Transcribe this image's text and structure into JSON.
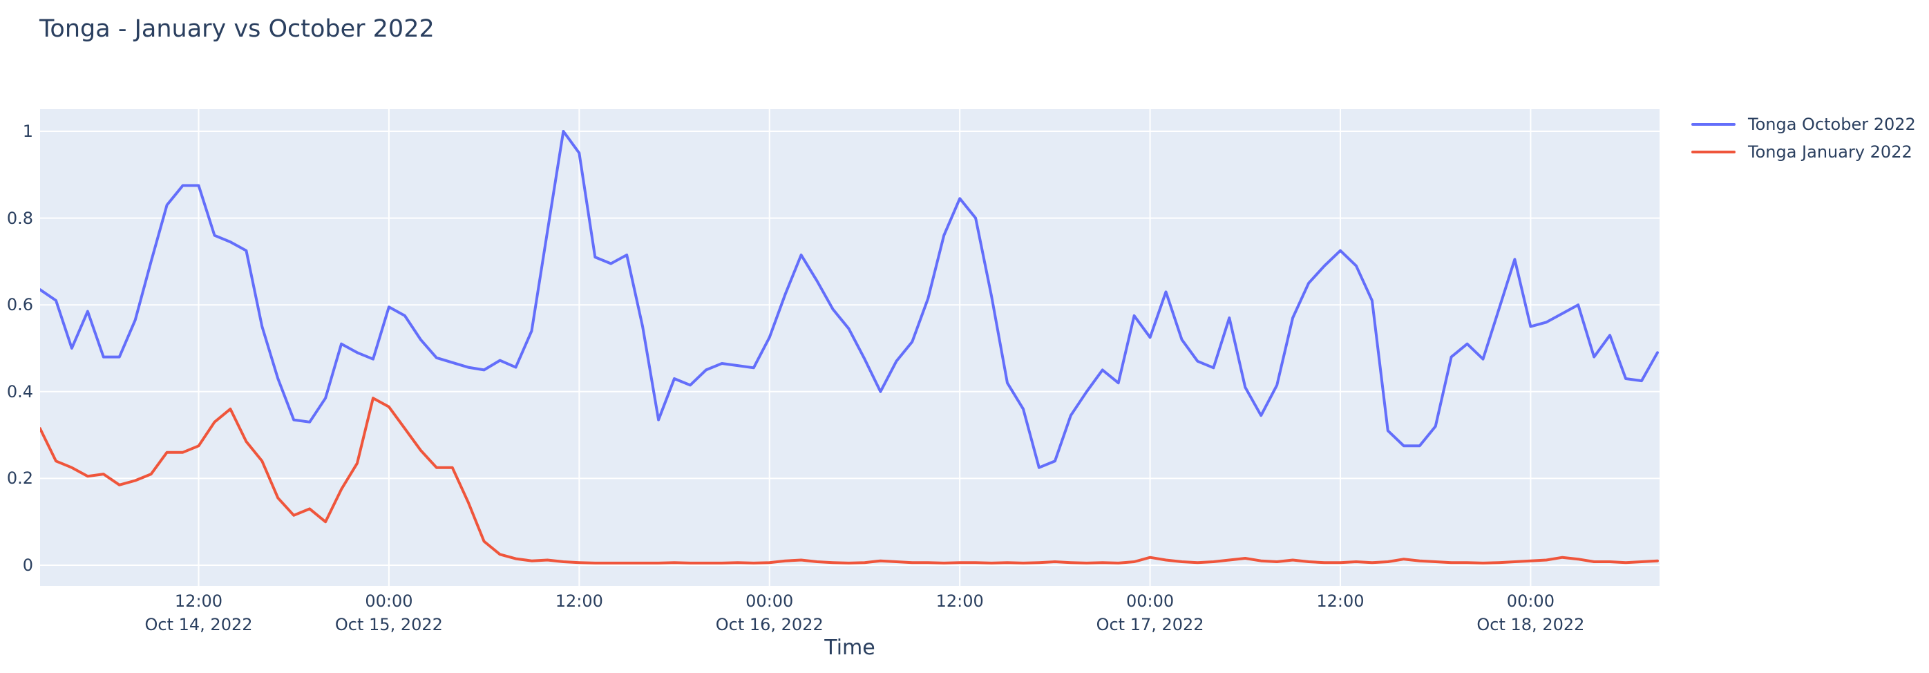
{
  "title": "Tonga - January vs October 2022",
  "colors": {
    "text": "#2a3f5f",
    "plot_background": "#E5ECF6",
    "paper_background": "#ffffff",
    "gridline": "#ffffff",
    "series_october": "#636EFA",
    "series_january": "#EF553B"
  },
  "legend": {
    "items": [
      {
        "label": "Tonga October 2022",
        "color": "#636EFA"
      },
      {
        "label": "Tonga January 2022",
        "color": "#EF553B"
      }
    ]
  },
  "chart_data": {
    "type": "line",
    "title": "Tonga - January vs October 2022",
    "xlabel": "Time",
    "ylabel": "",
    "grid": true,
    "legend_position": "right-top",
    "ylim": [
      0,
      1
    ],
    "yticks": {
      "values": [
        0,
        0.2,
        0.4,
        0.6,
        0.8,
        1
      ],
      "labels": [
        "0",
        "0.2",
        "0.4",
        "0.6",
        "0.8",
        "1"
      ]
    },
    "x_start": "2022-10-14 02:00",
    "x_step_hours": 1,
    "x_total_points": 103,
    "xticks": [
      {
        "offset_hours": 10,
        "time_label": "12:00",
        "date_label": "Oct 14, 2022"
      },
      {
        "offset_hours": 22,
        "time_label": "00:00",
        "date_label": "Oct 15, 2022"
      },
      {
        "offset_hours": 34,
        "time_label": "12:00",
        "date_label": ""
      },
      {
        "offset_hours": 46,
        "time_label": "00:00",
        "date_label": "Oct 16, 2022"
      },
      {
        "offset_hours": 58,
        "time_label": "12:00",
        "date_label": ""
      },
      {
        "offset_hours": 70,
        "time_label": "00:00",
        "date_label": "Oct 17, 2022"
      },
      {
        "offset_hours": 82,
        "time_label": "12:00",
        "date_label": ""
      },
      {
        "offset_hours": 94,
        "time_label": "00:00",
        "date_label": "Oct 18, 2022"
      }
    ],
    "series": [
      {
        "name": "Tonga October 2022",
        "color": "#636EFA",
        "values": [
          0.635,
          0.61,
          0.5,
          0.585,
          0.48,
          0.48,
          0.565,
          0.7,
          0.83,
          0.875,
          0.875,
          0.76,
          0.745,
          0.725,
          0.55,
          0.43,
          0.335,
          0.33,
          0.385,
          0.51,
          0.49,
          0.475,
          0.595,
          0.575,
          0.52,
          0.478,
          0.467,
          0.456,
          0.45,
          0.472,
          0.456,
          0.54,
          0.77,
          1.0,
          0.95,
          0.71,
          0.695,
          0.715,
          0.55,
          0.335,
          0.43,
          0.415,
          0.45,
          0.465,
          0.46,
          0.455,
          0.525,
          0.625,
          0.715,
          0.655,
          0.59,
          0.545,
          0.475,
          0.4,
          0.47,
          0.515,
          0.615,
          0.76,
          0.845,
          0.8,
          0.62,
          0.42,
          0.36,
          0.225,
          0.24,
          0.345,
          0.4,
          0.45,
          0.42,
          0.575,
          0.525,
          0.63,
          0.52,
          0.47,
          0.455,
          0.57,
          0.41,
          0.345,
          0.415,
          0.57,
          0.65,
          0.69,
          0.725,
          0.69,
          0.61,
          0.31,
          0.275,
          0.275,
          0.32,
          0.48,
          0.51,
          0.475,
          0.59,
          0.705,
          0.55,
          0.56,
          0.58,
          0.6,
          0.48,
          0.53,
          0.43,
          0.425,
          0.49
        ]
      },
      {
        "name": "Tonga January 2022",
        "color": "#EF553B",
        "values": [
          0.315,
          0.24,
          0.225,
          0.205,
          0.21,
          0.185,
          0.195,
          0.21,
          0.26,
          0.26,
          0.275,
          0.33,
          0.36,
          0.285,
          0.24,
          0.155,
          0.115,
          0.13,
          0.1,
          0.175,
          0.235,
          0.385,
          0.365,
          0.315,
          0.265,
          0.225,
          0.225,
          0.145,
          0.055,
          0.025,
          0.015,
          0.01,
          0.012,
          0.008,
          0.006,
          0.005,
          0.005,
          0.005,
          0.005,
          0.005,
          0.006,
          0.005,
          0.005,
          0.005,
          0.006,
          0.005,
          0.006,
          0.01,
          0.012,
          0.008,
          0.006,
          0.005,
          0.006,
          0.01,
          0.008,
          0.006,
          0.006,
          0.005,
          0.006,
          0.006,
          0.005,
          0.006,
          0.005,
          0.006,
          0.008,
          0.006,
          0.005,
          0.006,
          0.005,
          0.008,
          0.018,
          0.012,
          0.008,
          0.006,
          0.008,
          0.012,
          0.016,
          0.01,
          0.008,
          0.012,
          0.008,
          0.006,
          0.006,
          0.008,
          0.006,
          0.008,
          0.014,
          0.01,
          0.008,
          0.006,
          0.006,
          0.005,
          0.006,
          0.008,
          0.01,
          0.012,
          0.018,
          0.014,
          0.008,
          0.008,
          0.006,
          0.008,
          0.01
        ]
      }
    ]
  }
}
